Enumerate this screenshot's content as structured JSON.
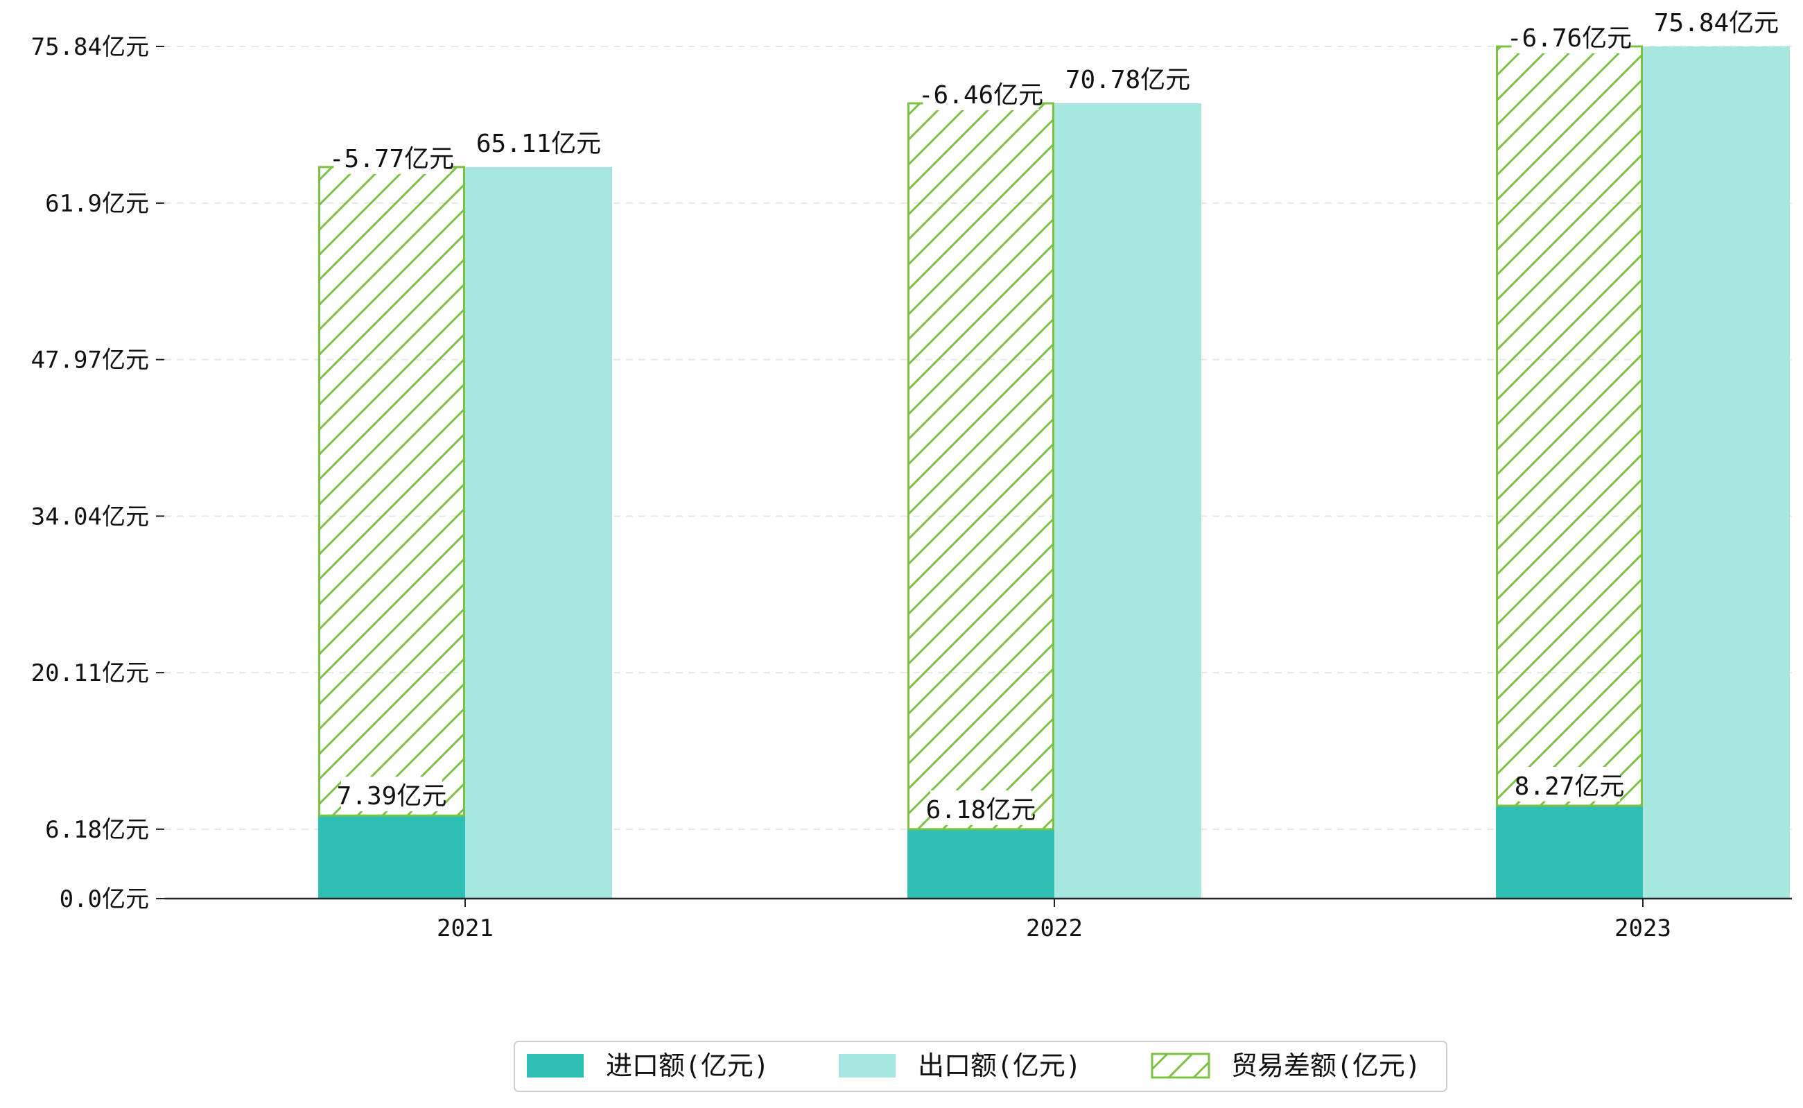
{
  "chart_data": {
    "type": "bar",
    "categories": [
      "2021",
      "2022",
      "2023"
    ],
    "series": [
      {
        "name": "进口额(亿元)",
        "values": [
          7.39,
          6.18,
          8.27
        ],
        "color": "#2ec0b4",
        "style": "solid"
      },
      {
        "name": "出口额(亿元)",
        "values": [
          65.11,
          70.78,
          75.84
        ],
        "color": "#a8e6e0",
        "style": "solid"
      },
      {
        "name": "贸易差额(亿元)",
        "values": [
          -5.77,
          -6.46,
          -6.76
        ],
        "color": "#7cc242",
        "style": "hatched",
        "note": "drawn as hatched outline bar stacked from import top to export top"
      }
    ],
    "data_labels": {
      "import": [
        "7.39亿元",
        "6.18亿元",
        "8.27亿元"
      ],
      "export": [
        "65.11亿元",
        "70.78亿元",
        "75.84亿元"
      ],
      "balance": [
        "-5.77亿元",
        "-6.46亿元",
        "-6.76亿元"
      ]
    },
    "y_ticks": [
      {
        "value": 0.0,
        "label": "0.0亿元"
      },
      {
        "value": 6.18,
        "label": "6.18亿元"
      },
      {
        "value": 20.11,
        "label": "20.11亿元"
      },
      {
        "value": 34.04,
        "label": "34.04亿元"
      },
      {
        "value": 47.97,
        "label": "47.97亿元"
      },
      {
        "value": 61.9,
        "label": "61.9亿元"
      },
      {
        "value": 75.84,
        "label": "75.84亿元"
      }
    ],
    "ylim": [
      0,
      75.84
    ],
    "grid": "horizontal dashed",
    "legend_position": "bottom-center",
    "title": "",
    "xlabel": "",
    "ylabel": ""
  }
}
